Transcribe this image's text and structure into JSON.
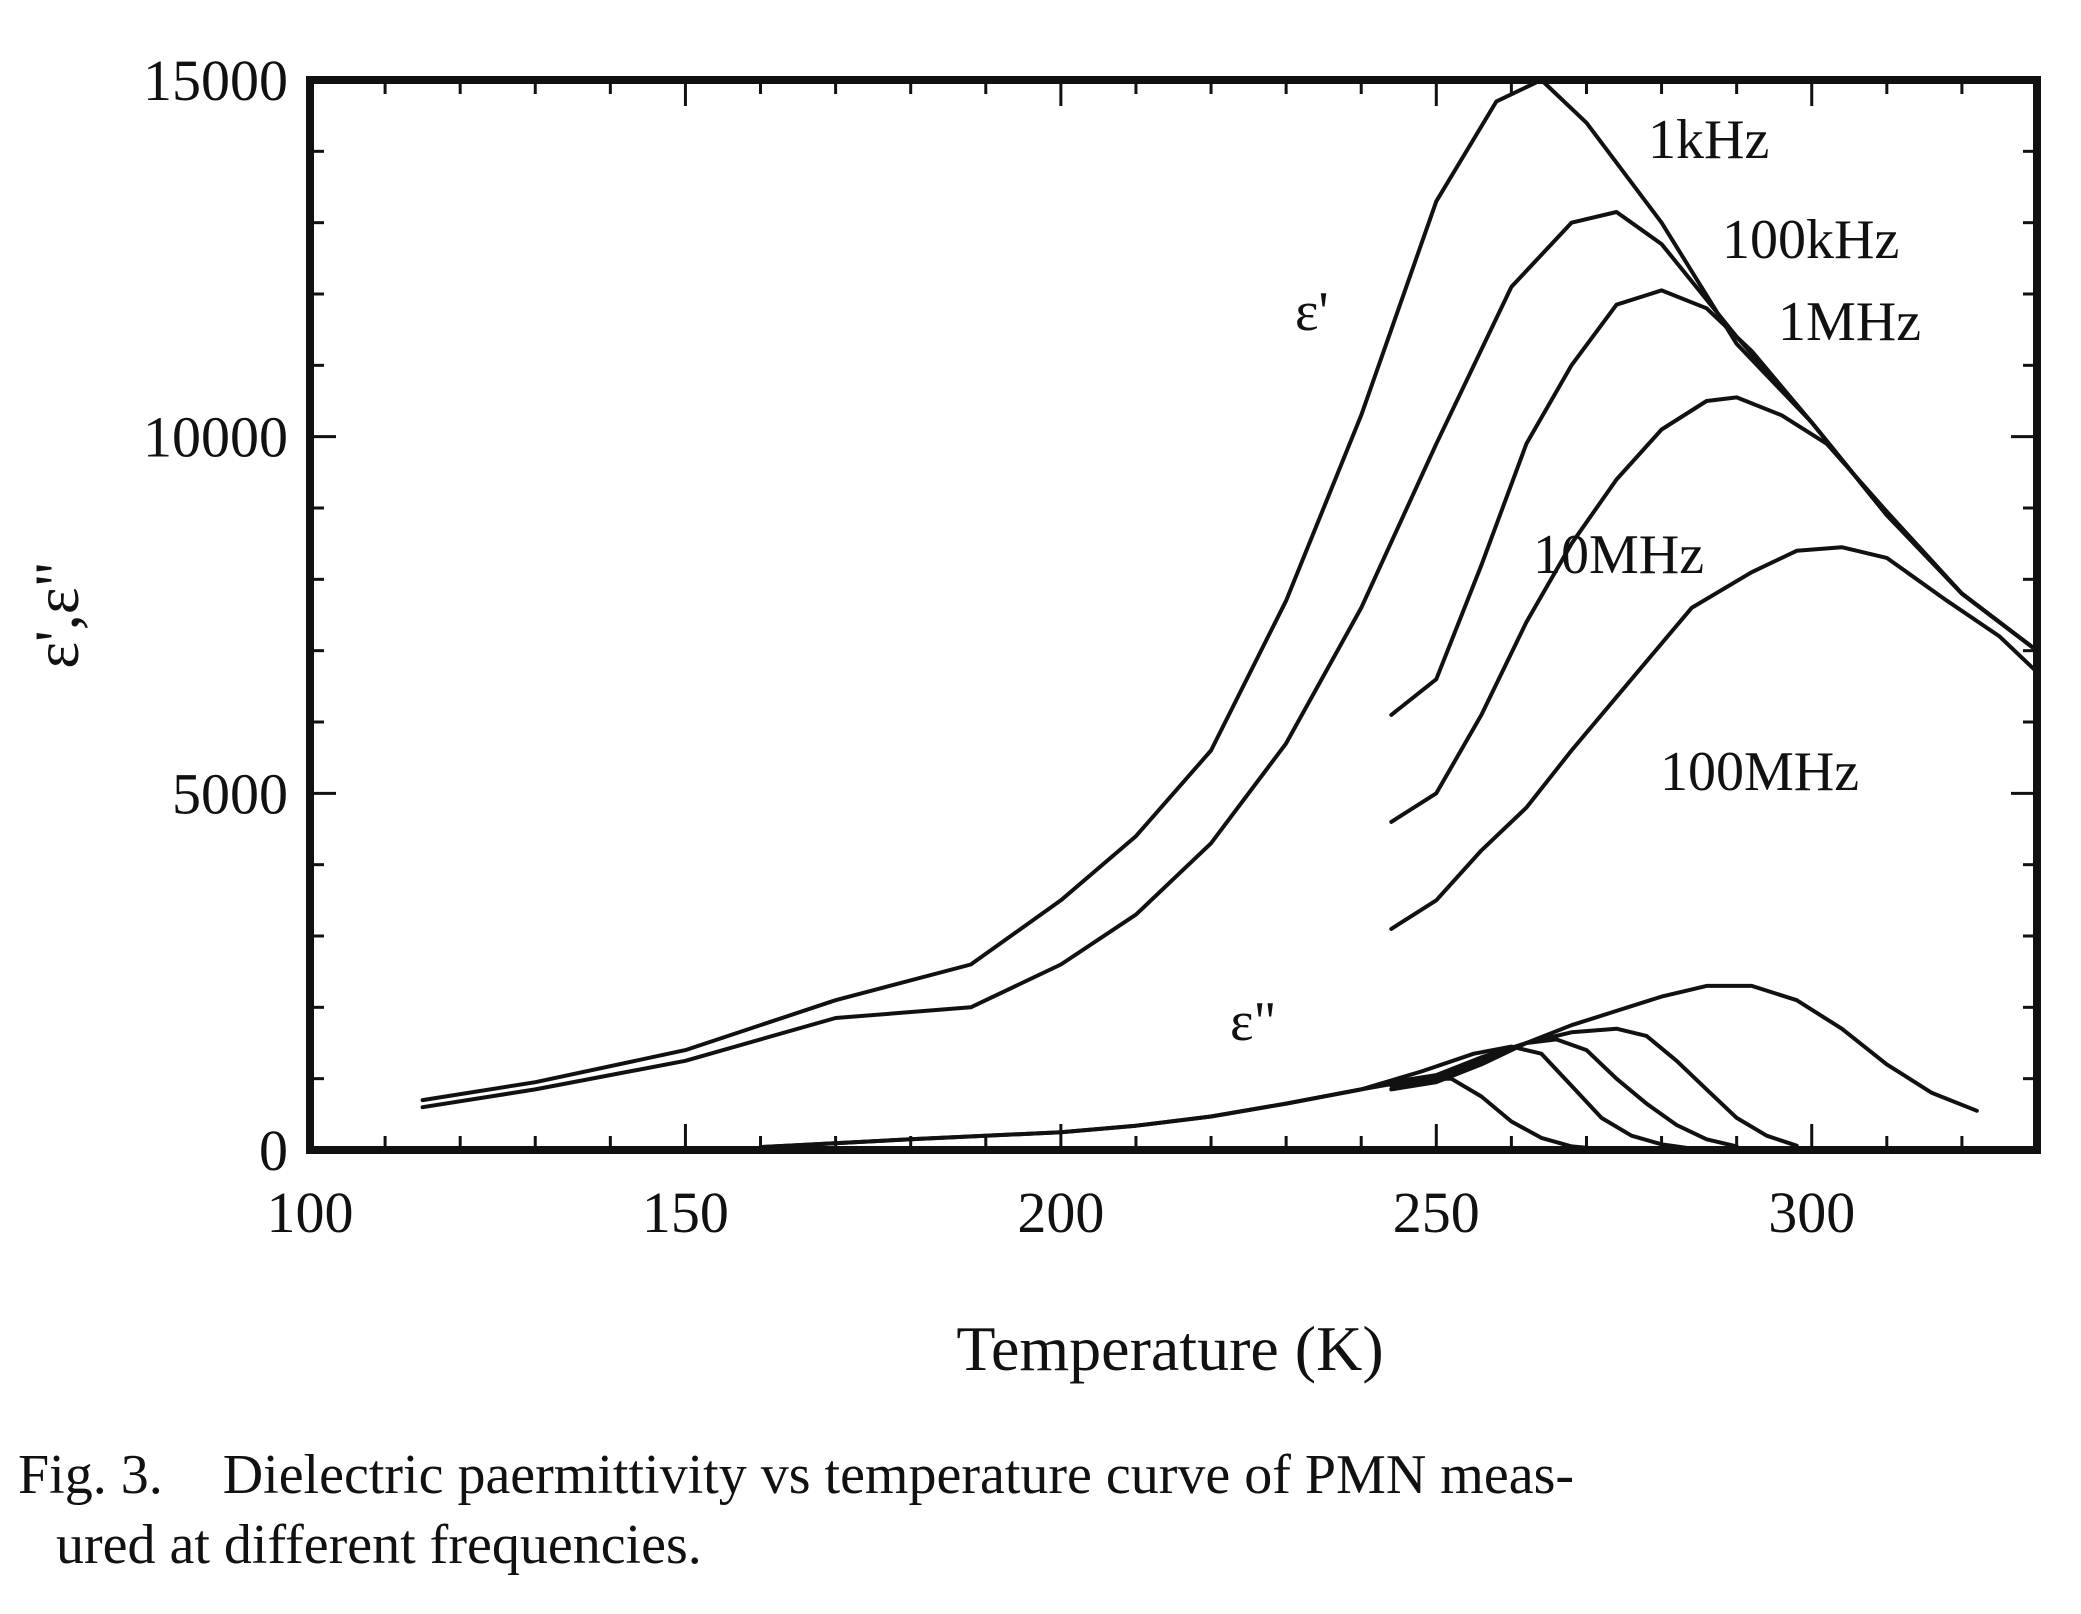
{
  "chart_data": {
    "type": "line",
    "xlabel": "Temperature (K)",
    "ylabel": "ε',ε\"",
    "xlim": [
      100,
      330
    ],
    "ylim": [
      0,
      15000
    ],
    "x_ticks": [
      "100",
      "150",
      "200",
      "250",
      "300"
    ],
    "y_ticks": [
      "0",
      "5000",
      "10000",
      "15000"
    ],
    "grid": false,
    "legend": "none",
    "annotations": {
      "eps_real": "ε'",
      "eps_imag": "ε\"",
      "f_1khz": "1kHz",
      "f_100khz": "100kHz",
      "f_1mhz": "1MHz",
      "f_10mhz": "10MHz",
      "f_100mhz": "100MHz"
    },
    "series": [
      {
        "name": "1kHz",
        "group": "real",
        "points": [
          [
            115,
            700
          ],
          [
            130,
            950
          ],
          [
            150,
            1400
          ],
          [
            170,
            2100
          ],
          [
            188,
            2600
          ],
          [
            200,
            3500
          ],
          [
            210,
            4400
          ],
          [
            220,
            5600
          ],
          [
            230,
            7700
          ],
          [
            240,
            10300
          ],
          [
            250,
            13300
          ],
          [
            258,
            14700
          ],
          [
            264,
            15000
          ],
          [
            270,
            14400
          ],
          [
            280,
            13000
          ],
          [
            290,
            11300
          ],
          [
            300,
            10200
          ],
          [
            310,
            8900
          ],
          [
            320,
            7800
          ],
          [
            330,
            7000
          ]
        ]
      },
      {
        "name": "100kHz",
        "group": "real",
        "points": [
          [
            115,
            600
          ],
          [
            130,
            850
          ],
          [
            150,
            1250
          ],
          [
            170,
            1850
          ],
          [
            188,
            2000
          ],
          [
            200,
            2600
          ],
          [
            210,
            3300
          ],
          [
            220,
            4300
          ],
          [
            230,
            5700
          ],
          [
            240,
            7600
          ],
          [
            250,
            9900
          ],
          [
            260,
            12100
          ],
          [
            268,
            13000
          ],
          [
            274,
            13150
          ],
          [
            280,
            12700
          ],
          [
            290,
            11400
          ],
          [
            300,
            10200
          ],
          [
            310,
            8900
          ],
          [
            320,
            7800
          ],
          [
            330,
            7000
          ]
        ]
      },
      {
        "name": "1MHz",
        "group": "real",
        "points": [
          [
            244,
            6100
          ],
          [
            250,
            6600
          ],
          [
            256,
            8200
          ],
          [
            262,
            9900
          ],
          [
            268,
            11000
          ],
          [
            274,
            11850
          ],
          [
            280,
            12050
          ],
          [
            286,
            11800
          ],
          [
            292,
            11200
          ],
          [
            300,
            10200
          ],
          [
            310,
            8900
          ],
          [
            320,
            7800
          ],
          [
            330,
            7000
          ]
        ]
      },
      {
        "name": "10MHz",
        "group": "real",
        "points": [
          [
            244,
            4600
          ],
          [
            250,
            5000
          ],
          [
            256,
            6100
          ],
          [
            262,
            7400
          ],
          [
            268,
            8500
          ],
          [
            274,
            9400
          ],
          [
            280,
            10100
          ],
          [
            286,
            10500
          ],
          [
            290,
            10550
          ],
          [
            296,
            10300
          ],
          [
            302,
            9900
          ],
          [
            310,
            8950
          ],
          [
            320,
            7800
          ],
          [
            330,
            7000
          ]
        ]
      },
      {
        "name": "100MHz",
        "group": "real",
        "points": [
          [
            244,
            3100
          ],
          [
            250,
            3500
          ],
          [
            256,
            4200
          ],
          [
            262,
            4800
          ],
          [
            268,
            5600
          ],
          [
            276,
            6600
          ],
          [
            284,
            7600
          ],
          [
            292,
            8100
          ],
          [
            298,
            8400
          ],
          [
            304,
            8450
          ],
          [
            310,
            8300
          ],
          [
            318,
            7700
          ],
          [
            325,
            7200
          ],
          [
            330,
            6700
          ]
        ]
      },
      {
        "name": "1kHz",
        "group": "imag",
        "points": [
          [
            160,
            40
          ],
          [
            180,
            150
          ],
          [
            200,
            250
          ],
          [
            210,
            340
          ],
          [
            220,
            470
          ],
          [
            230,
            650
          ],
          [
            240,
            850
          ],
          [
            248,
            1000
          ],
          [
            252,
            1000
          ],
          [
            256,
            750
          ],
          [
            260,
            400
          ],
          [
            264,
            170
          ],
          [
            268,
            50
          ],
          [
            272,
            10
          ]
        ]
      },
      {
        "name": "100kHz",
        "group": "imag",
        "points": [
          [
            160,
            40
          ],
          [
            180,
            150
          ],
          [
            200,
            250
          ],
          [
            210,
            340
          ],
          [
            220,
            470
          ],
          [
            230,
            650
          ],
          [
            240,
            850
          ],
          [
            248,
            1100
          ],
          [
            255,
            1350
          ],
          [
            260,
            1450
          ],
          [
            264,
            1350
          ],
          [
            268,
            900
          ],
          [
            272,
            450
          ],
          [
            276,
            200
          ],
          [
            280,
            80
          ],
          [
            284,
            20
          ]
        ]
      },
      {
        "name": "1MHz",
        "group": "imag",
        "points": [
          [
            244,
            950
          ],
          [
            250,
            1050
          ],
          [
            256,
            1300
          ],
          [
            262,
            1500
          ],
          [
            266,
            1550
          ],
          [
            270,
            1400
          ],
          [
            274,
            1000
          ],
          [
            278,
            650
          ],
          [
            282,
            350
          ],
          [
            286,
            150
          ],
          [
            290,
            50
          ]
        ]
      },
      {
        "name": "10MHz",
        "group": "imag",
        "points": [
          [
            244,
            900
          ],
          [
            250,
            1000
          ],
          [
            256,
            1250
          ],
          [
            262,
            1500
          ],
          [
            268,
            1650
          ],
          [
            274,
            1700
          ],
          [
            278,
            1600
          ],
          [
            282,
            1250
          ],
          [
            286,
            850
          ],
          [
            290,
            450
          ],
          [
            294,
            200
          ],
          [
            298,
            60
          ]
        ]
      },
      {
        "name": "100MHz",
        "group": "imag",
        "points": [
          [
            244,
            850
          ],
          [
            250,
            950
          ],
          [
            256,
            1200
          ],
          [
            262,
            1500
          ],
          [
            268,
            1750
          ],
          [
            274,
            1950
          ],
          [
            280,
            2150
          ],
          [
            286,
            2300
          ],
          [
            292,
            2300
          ],
          [
            298,
            2100
          ],
          [
            304,
            1700
          ],
          [
            310,
            1200
          ],
          [
            316,
            800
          ],
          [
            322,
            550
          ]
        ]
      }
    ]
  },
  "caption": {
    "number": "Fig. 3.",
    "line1": "Dielectric paermittivity vs temperature curve of PMN meas-",
    "line2": "ured at different frequencies."
  }
}
